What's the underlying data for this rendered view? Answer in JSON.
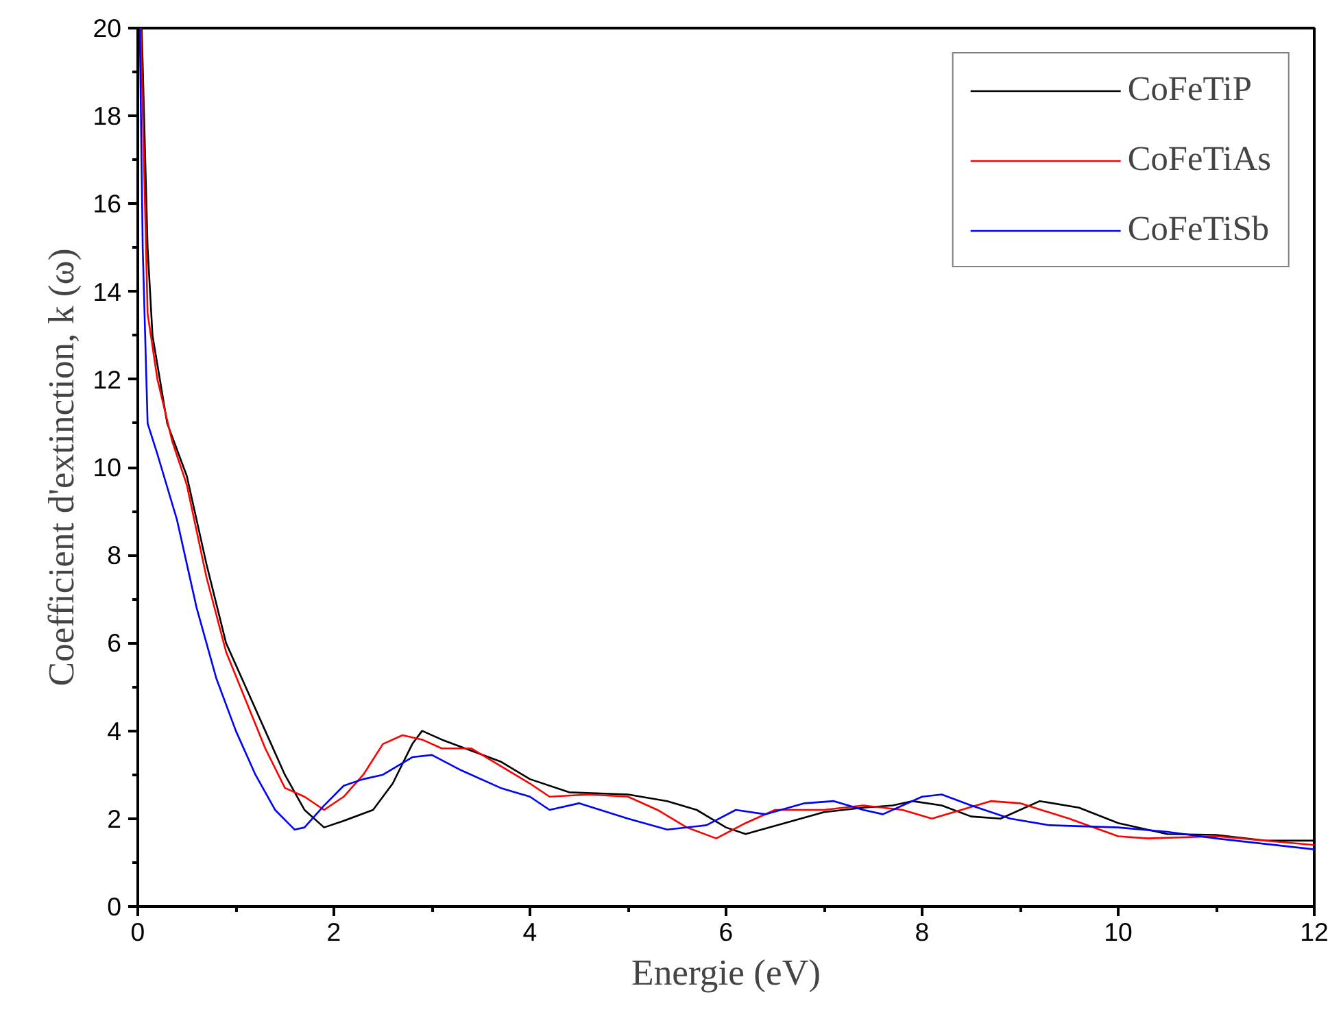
{
  "chart_data": {
    "type": "line",
    "xlabel": "Energie (eV)",
    "ylabel": "Coefficient d'extinction, k (ω)",
    "xlim": [
      0,
      12
    ],
    "ylim": [
      0,
      20
    ],
    "xticks": [
      0,
      2,
      4,
      6,
      8,
      10,
      12
    ],
    "yticks": [
      0,
      2,
      4,
      6,
      8,
      10,
      12,
      14,
      16,
      18,
      20
    ],
    "grid": false,
    "legend": "top right",
    "line_style": "solid",
    "marker": "none",
    "series": [
      {
        "name": "CoFeTiP",
        "color": "#000000",
        "x": [
          0.04,
          0.1,
          0.15,
          0.3,
          0.5,
          0.7,
          0.9,
          1.1,
          1.3,
          1.5,
          1.7,
          1.9,
          2.1,
          2.4,
          2.6,
          2.8,
          2.9,
          3.1,
          3.4,
          3.7,
          4.0,
          4.4,
          5.0,
          5.4,
          5.7,
          6.0,
          6.2,
          6.6,
          7.0,
          7.4,
          7.7,
          7.9,
          8.2,
          8.5,
          8.8,
          9.2,
          9.6,
          10.0,
          10.5,
          11.0,
          11.5,
          12.0
        ],
        "values": [
          20,
          15,
          13,
          11,
          9.8,
          7.8,
          6,
          5,
          4,
          3,
          2.2,
          1.8,
          1.95,
          2.2,
          2.8,
          3.7,
          4.0,
          3.8,
          3.55,
          3.3,
          2.9,
          2.6,
          2.55,
          2.4,
          2.2,
          1.8,
          1.65,
          1.9,
          2.15,
          2.25,
          2.3,
          2.4,
          2.3,
          2.05,
          2.0,
          2.4,
          2.25,
          1.9,
          1.65,
          1.63,
          1.5,
          1.5
        ]
      },
      {
        "name": "CoFeTiAs",
        "color": "#ff0000",
        "x": [
          0.03,
          0.1,
          0.2,
          0.35,
          0.5,
          0.7,
          0.9,
          1.1,
          1.3,
          1.5,
          1.7,
          1.9,
          2.1,
          2.3,
          2.5,
          2.7,
          2.9,
          3.1,
          3.4,
          3.7,
          4.0,
          4.2,
          4.6,
          5.0,
          5.3,
          5.6,
          5.9,
          6.2,
          6.5,
          7.0,
          7.4,
          7.8,
          8.1,
          8.4,
          8.7,
          9.0,
          9.5,
          10.0,
          10.3,
          11.0,
          12.0
        ],
        "values": [
          20,
          13.5,
          12,
          10.6,
          9.6,
          7.5,
          5.8,
          4.7,
          3.6,
          2.7,
          2.5,
          2.2,
          2.5,
          3.0,
          3.7,
          3.9,
          3.8,
          3.6,
          3.6,
          3.2,
          2.8,
          2.5,
          2.55,
          2.5,
          2.2,
          1.8,
          1.55,
          1.9,
          2.2,
          2.2,
          2.3,
          2.2,
          2.0,
          2.2,
          2.4,
          2.35,
          2.0,
          1.6,
          1.55,
          1.6,
          1.4
        ]
      },
      {
        "name": "CoFeTiSb",
        "color": "#0000ff",
        "x": [
          0.02,
          0.05,
          0.1,
          0.2,
          0.4,
          0.6,
          0.8,
          1.0,
          1.2,
          1.4,
          1.6,
          1.7,
          1.9,
          2.1,
          2.3,
          2.5,
          2.8,
          3.0,
          3.3,
          3.7,
          4.0,
          4.2,
          4.5,
          5.0,
          5.4,
          5.8,
          6.1,
          6.4,
          6.8,
          7.1,
          7.4,
          7.6,
          8.0,
          8.2,
          8.5,
          8.9,
          9.3,
          10.0,
          10.5,
          11.0,
          12.0
        ],
        "values": [
          20,
          15,
          11,
          10.3,
          8.8,
          6.8,
          5.2,
          4.0,
          3.0,
          2.2,
          1.75,
          1.8,
          2.3,
          2.75,
          2.9,
          3.0,
          3.4,
          3.45,
          3.1,
          2.7,
          2.5,
          2.2,
          2.35,
          2.0,
          1.75,
          1.85,
          2.2,
          2.1,
          2.35,
          2.4,
          2.2,
          2.1,
          2.5,
          2.55,
          2.3,
          2.0,
          1.85,
          1.8,
          1.7,
          1.55,
          1.3
        ]
      }
    ]
  }
}
